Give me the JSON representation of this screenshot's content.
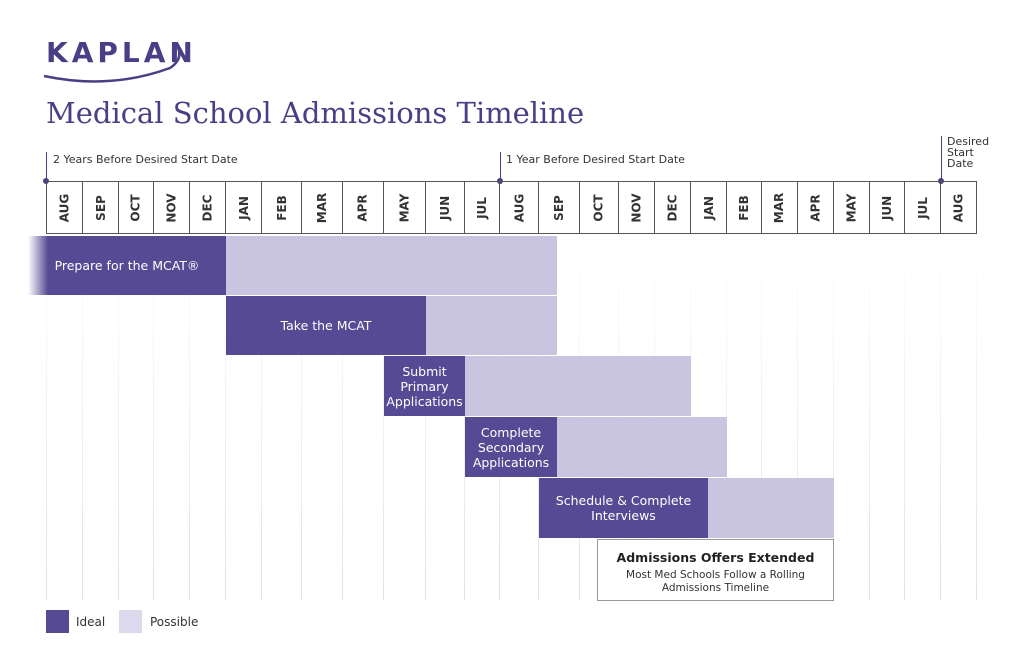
{
  "logo": "KAPLAN",
  "title": "Medical School Admissions Timeline",
  "markers": [
    "2 Years Before Desired Start Date",
    "1 Year Before Desired Start Date",
    "Desired Start Date"
  ],
  "months": [
    "AUG",
    "SEP",
    "OCT",
    "NOV",
    "DEC",
    "JAN",
    "FEB",
    "MAR",
    "APR",
    "MAY",
    "JUN",
    "JUL",
    "AUG",
    "SEP",
    "OCT",
    "NOV",
    "DEC",
    "JAN",
    "FEB",
    "MAR",
    "APR",
    "MAY",
    "JUN",
    "JUL",
    "AUG"
  ],
  "steps": [
    "Prepare for the MCAT®",
    "Take the MCAT",
    "Submit Primary Applications",
    "Complete Secondary Applications",
    "Schedule & Complete Interviews"
  ],
  "offers": {
    "title": "Admissions Offers Extended",
    "note": "Most Med Schools Follow a Rolling Admissions Timeline"
  },
  "legend": [
    "Ideal",
    "Possible"
  ]
}
